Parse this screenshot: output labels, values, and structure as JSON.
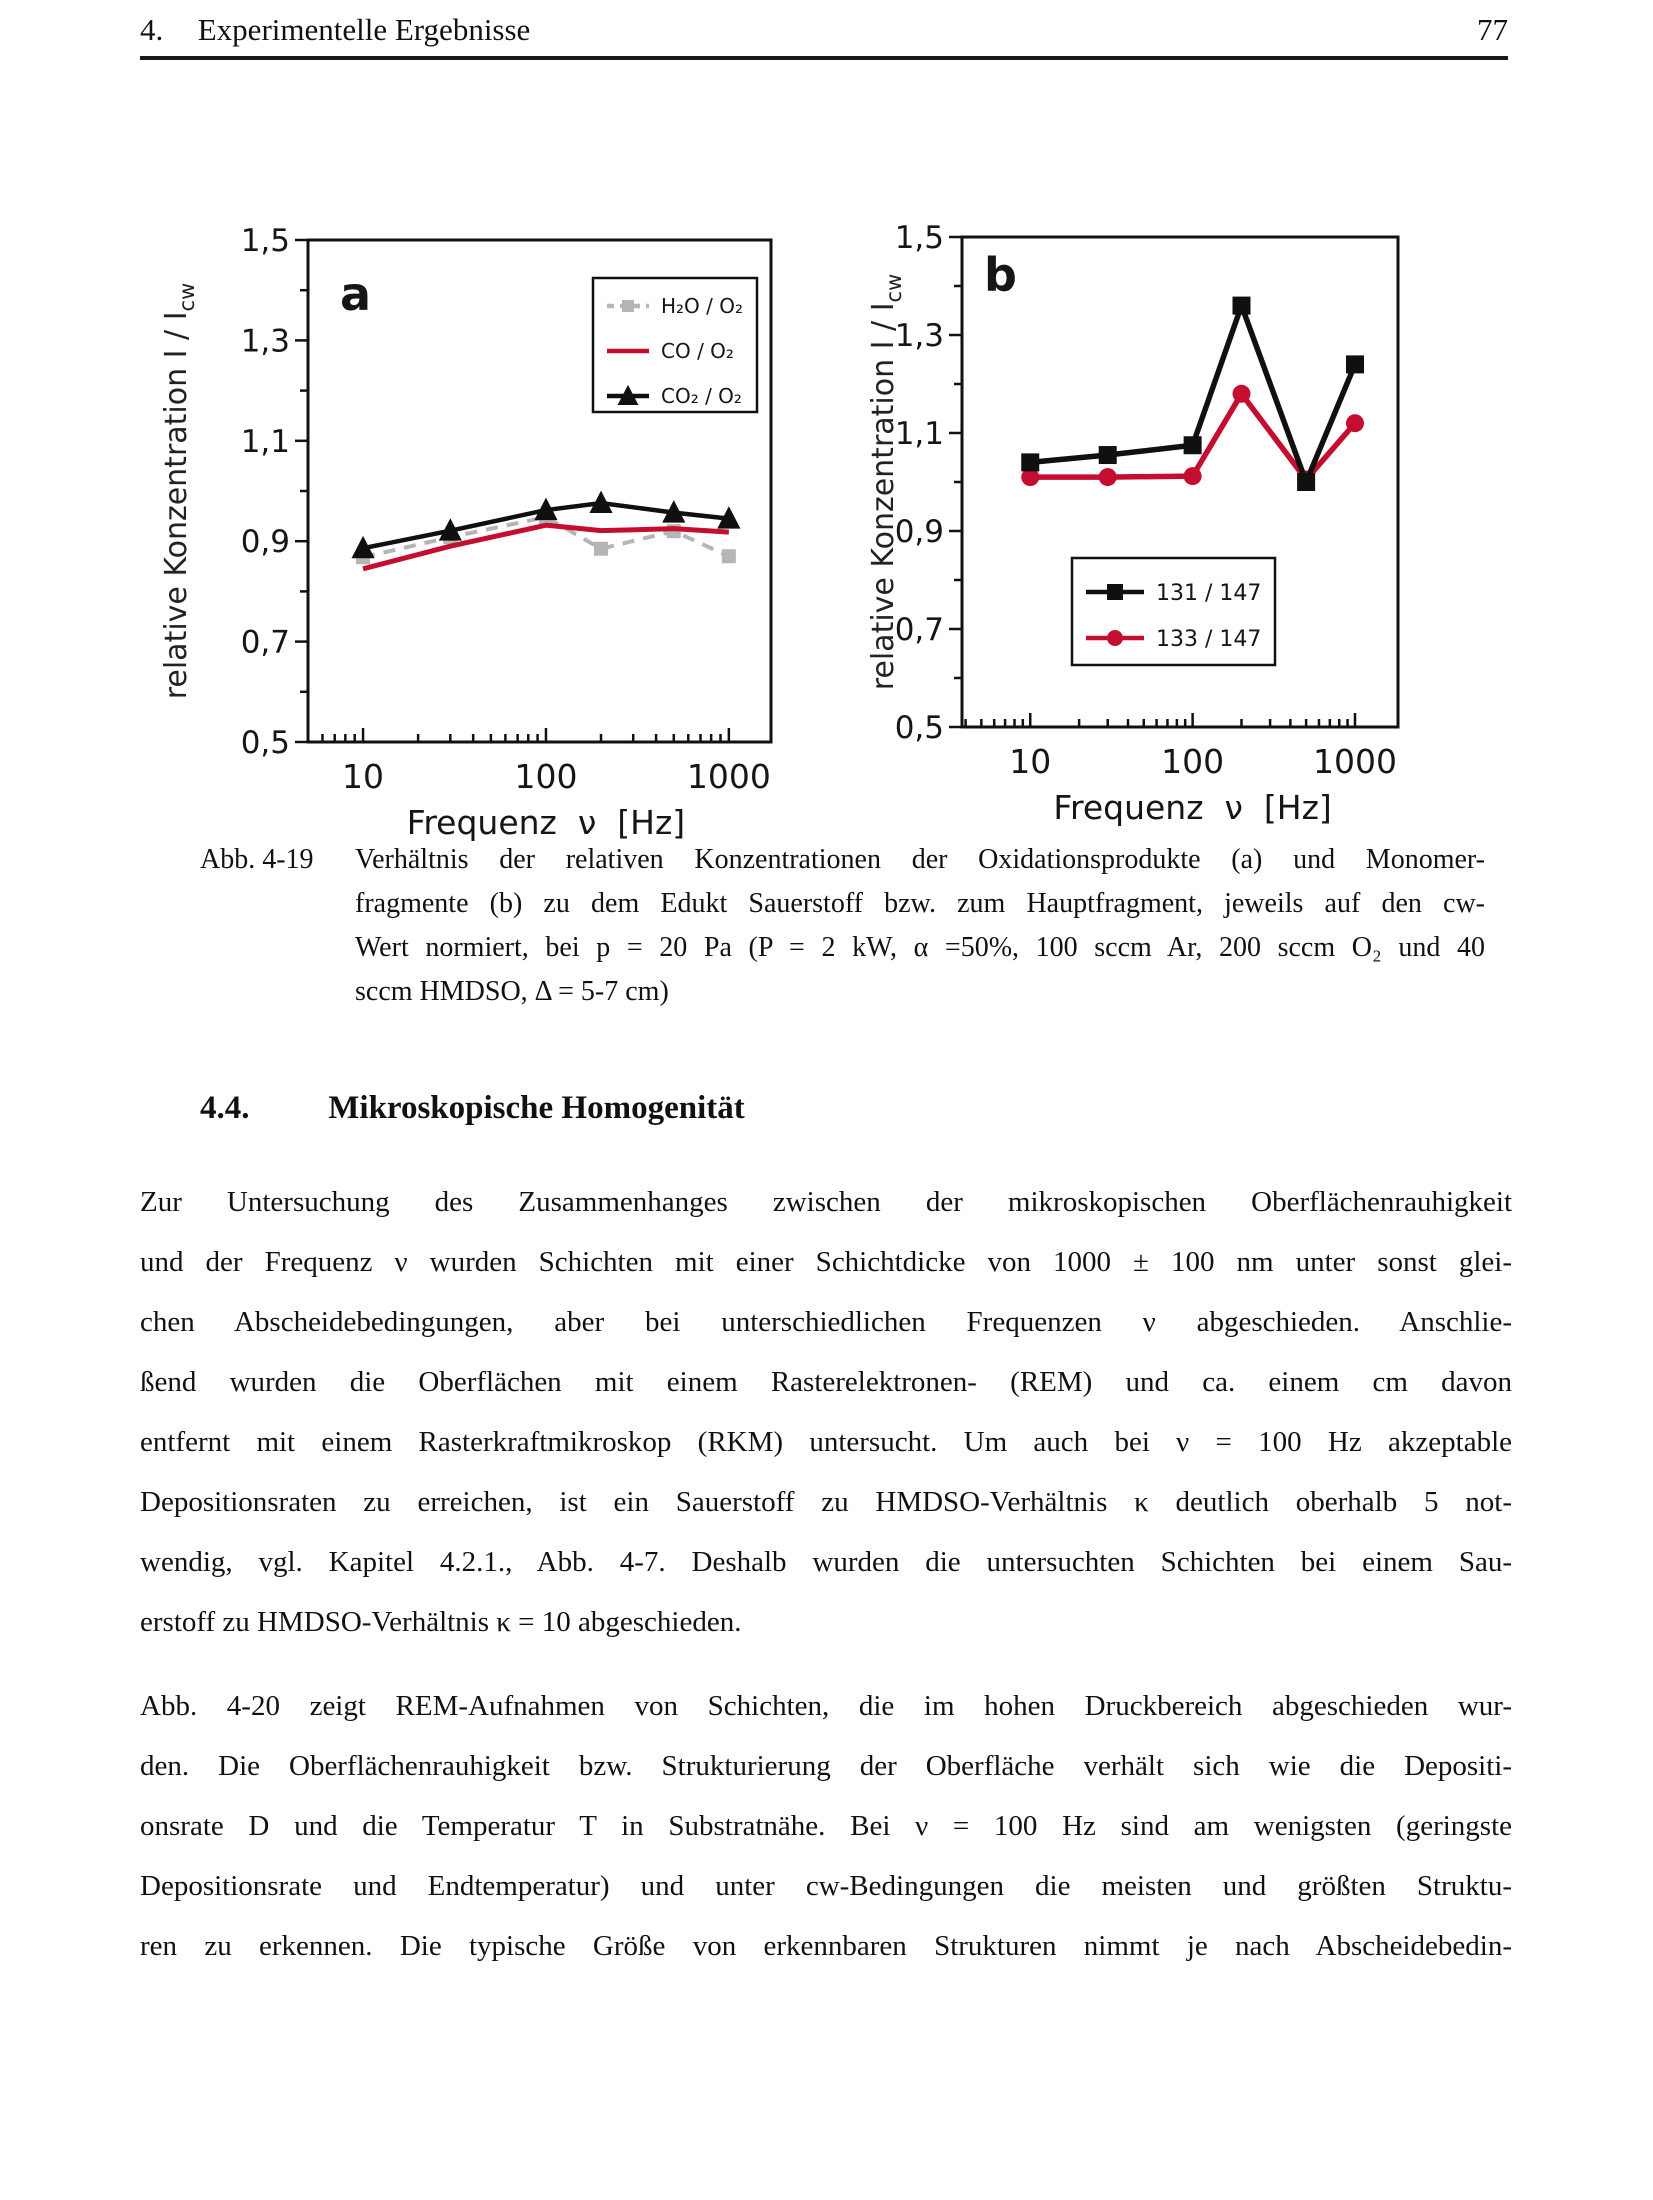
{
  "header": {
    "chapter": "4.",
    "title": "Experimentelle Ergebnisse",
    "page_number": "77"
  },
  "chart_data": [
    {
      "id": "a",
      "type": "line",
      "panel_label": "a",
      "xlabel": "Frequenz  ν  [Hz]",
      "ylabel_main": "relative Konzentration I / I",
      "ylabel_sub": "cw",
      "x_scale": "log",
      "xlim": [
        5,
        1700
      ],
      "ylim": [
        0.5,
        1.5
      ],
      "x_ticks": [
        10,
        100,
        1000
      ],
      "x_tick_labels": [
        "10",
        "100",
        "1000"
      ],
      "y_ticks": [
        0.5,
        0.7,
        0.9,
        1.1,
        1.3,
        1.5
      ],
      "y_tick_labels": [
        "0,5",
        "0,7",
        "0,9",
        "1,1",
        "1,3",
        "1,5"
      ],
      "grid": false,
      "legend_position": "upper-right",
      "x": [
        10,
        30,
        100,
        200,
        500,
        1000
      ],
      "series": [
        {
          "name": "H₂O / O₂",
          "color": "#b5b5b5",
          "line": "dashed",
          "width": 4,
          "marker": "square",
          "marker_size": 14,
          "values": [
            0.868,
            0.908,
            0.948,
            0.885,
            0.92,
            0.87
          ]
        },
        {
          "name": "CO / O₂",
          "color": "#c50d30",
          "line": "solid",
          "width": 5,
          "marker": "none",
          "marker_size": 0,
          "values": [
            0.845,
            0.89,
            0.932,
            0.921,
            0.925,
            0.918
          ]
        },
        {
          "name": "CO₂ / O₂",
          "color": "#101010",
          "line": "solid",
          "width": 4.5,
          "marker": "triangle",
          "marker_size": 20,
          "values": [
            0.886,
            0.921,
            0.962,
            0.976,
            0.957,
            0.945
          ]
        }
      ]
    },
    {
      "id": "b",
      "type": "line",
      "panel_label": "b",
      "xlabel": "Frequenz  ν  [Hz]",
      "ylabel_main": "relative Konzentration I / I",
      "ylabel_sub": "cw",
      "x_scale": "log",
      "xlim": [
        3.8,
        1840
      ],
      "ylim": [
        0.5,
        1.5
      ],
      "x_ticks": [
        10,
        100,
        1000
      ],
      "x_tick_labels": [
        "10",
        "100",
        "1000"
      ],
      "y_ticks": [
        0.5,
        0.7,
        0.9,
        1.1,
        1.3,
        1.5
      ],
      "y_tick_labels": [
        "0,5",
        "0,7",
        "0,9",
        "1,1",
        "1,3",
        "1,5"
      ],
      "grid": false,
      "legend_position": "lower-center",
      "x": [
        10,
        30,
        100,
        200,
        500,
        1000
      ],
      "series": [
        {
          "name": "131 / 147",
          "color": "#101010",
          "line": "solid",
          "width": 5.5,
          "marker": "square",
          "marker_size": 18,
          "z": 2,
          "values": [
            1.04,
            1.055,
            1.075,
            1.36,
            1.0,
            1.24
          ]
        },
        {
          "name": "133 / 147",
          "color": "#c50d30",
          "line": "solid",
          "width": 5.5,
          "marker": "circle",
          "marker_size": 18,
          "z": 1,
          "values": [
            1.01,
            1.01,
            1.012,
            1.18,
            1.005,
            1.12
          ]
        }
      ]
    }
  ],
  "caption": {
    "label": "Abb. 4-19",
    "lines": [
      "Verhältnis der relativen Konzentrationen der Oxidationsprodukte (a) und Monomer-",
      "fragmente (b) zu dem Edukt Sauerstoff bzw. zum Hauptfragment, jeweils auf den cw-",
      "Wert normiert, bei p = 20 Pa (P = 2 kW, α =50%, 100 sccm Ar, 200 sccm O₂ und 40",
      "sccm HMDSO, Δ = 5-7 cm)"
    ]
  },
  "section": {
    "number": "4.4.",
    "title": "Mikroskopische Homogenität"
  },
  "paragraphs": [
    {
      "lines": [
        "Zur Untersuchung des Zusammenhanges zwischen der mikroskopischen Oberflächenrauhigkeit",
        "und der Frequenz ν wurden Schichten mit einer Schichtdicke von 1000 ± 100 nm unter sonst glei-",
        "chen Abscheidebedingungen, aber bei unterschiedlichen Frequenzen ν abgeschieden. Anschlie-",
        "ßend wurden die Oberflächen mit einem Rasterelektronen- (REM) und ca. einem cm davon",
        "entfernt mit einem Rasterkraftmikroskop (RKM) untersucht. Um auch bei ν = 100 Hz akzeptable",
        "Depositionsraten zu erreichen, ist ein Sauerstoff zu HMDSO-Verhältnis κ deutlich oberhalb 5 not-",
        "wendig, vgl. Kapitel 4.2.1., Abb. 4-7. Deshalb wurden die untersuchten Schichten bei einem Sau-",
        "erstoff zu HMDSO-Verhältnis κ = 10 abgeschieden."
      ]
    },
    {
      "lines": [
        "Abb. 4-20 zeigt REM-Aufnahmen von Schichten, die im hohen Druckbereich abgeschieden wur-",
        "den. Die Oberflächenrauhigkeit bzw. Strukturierung der Oberfläche verhält sich wie die Depositi-",
        "onsrate D und die Temperatur T in Substratnähe. Bei ν = 100 Hz sind am wenigsten (geringste",
        "Depositionsrate und Endtemperatur) und unter cw-Bedingungen die meisten und größten Struktu-",
        "ren zu erkennen. Die typische Größe von erkennbaren Strukturen nimmt je nach Abscheidebedin-"
      ]
    }
  ]
}
